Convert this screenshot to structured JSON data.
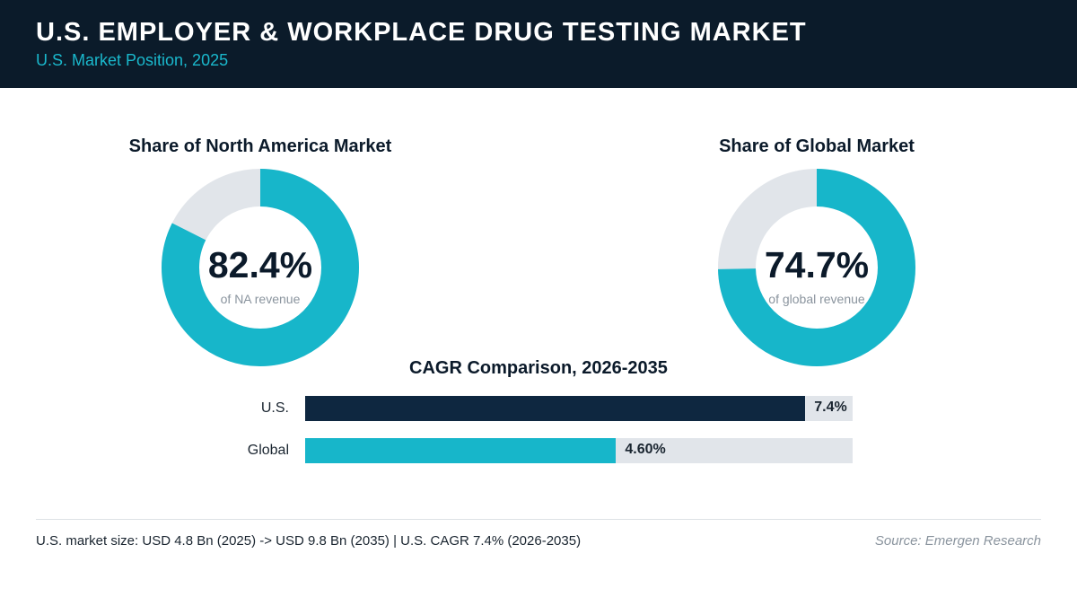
{
  "header": {
    "title": "U.S. EMPLOYER & WORKPLACE DRUG TESTING MARKET",
    "subtitle": "U.S. Market Position, 2025"
  },
  "colors": {
    "header_bg": "#0b1b2a",
    "accent": "#17b6ca",
    "dark_navy": "#0e2740",
    "track": "#e1e5ea"
  },
  "chart_data": [
    {
      "type": "pie",
      "title": "Share of North America Market",
      "value": 82.4,
      "value_label": "82.4%",
      "center_label": "of NA revenue"
    },
    {
      "type": "pie",
      "title": "Share of Global Market",
      "value": 74.7,
      "value_label": "74.7%",
      "center_label": "of global revenue"
    },
    {
      "type": "bar",
      "title": "CAGR Comparison, 2026-2035",
      "categories": [
        "U.S.",
        "Global"
      ],
      "values": [
        7.4,
        4.6
      ],
      "value_labels": [
        "7.4%",
        "4.60%"
      ],
      "xlim": [
        0,
        8.1
      ]
    }
  ],
  "footer": {
    "note": "U.S. market size: USD 4.8 Bn (2025) -> USD 9.8 Bn (2035)  |  U.S. CAGR 7.4% (2026-2035)",
    "source": "Source: Emergen Research"
  }
}
